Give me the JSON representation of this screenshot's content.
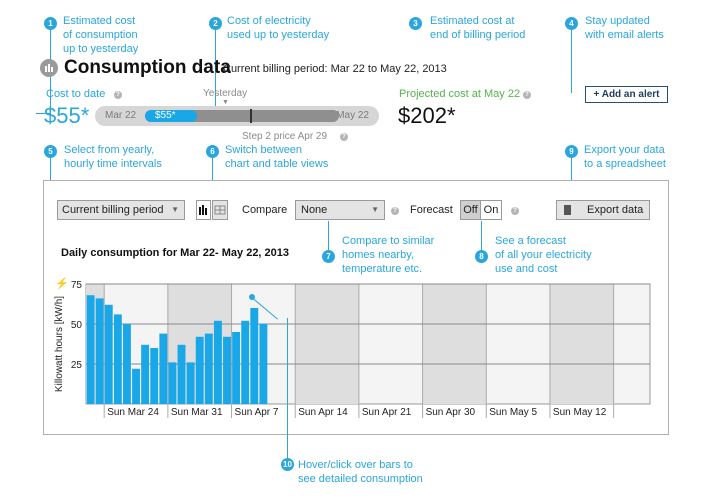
{
  "annotations": {
    "n1": {
      "num": "1",
      "text": "Estimated cost\nof consumption\nup to yesterday"
    },
    "n2": {
      "num": "2",
      "text": "Cost of electricity\nused up to yesterday"
    },
    "n3": {
      "num": "3",
      "text": "Estimated cost at\nend of billing period"
    },
    "n4": {
      "num": "4",
      "text": "Stay updated\nwith email alerts"
    },
    "n5": {
      "num": "5",
      "text": "Select from yearly,\nhourly time intervals"
    },
    "n6": {
      "num": "6",
      "text": "Switch between\nchart and table views"
    },
    "n7": {
      "num": "7",
      "text": "Compare to similar\nhomes nearby,\ntemperature etc."
    },
    "n8": {
      "num": "8",
      "text": "See a forecast\nof all your electricity\nuse and cost"
    },
    "n9": {
      "num": "9",
      "text": "Export your data\nto a spreadsheet"
    },
    "n10": {
      "num": "10",
      "text": "Hover/click over bars to\nsee detailed consumption"
    }
  },
  "header": {
    "title": "Consumption data",
    "billing_period": "Current billing period: Mar 22 to May 22, 2013"
  },
  "cost": {
    "to_date_label": "Cost to date",
    "to_date_value": "$55*",
    "yesterday_label": "Yesterday",
    "slider_start": "Mar 22",
    "slider_end": "May 22",
    "slider_fill_label": "$55*",
    "step_label": "Step 2 price Apr 29",
    "projected_label": "Projected cost at May 22",
    "projected_value": "$202*",
    "progress_fraction": 0.27,
    "step_fraction": 0.54
  },
  "alert_button": "+ Add an alert",
  "toolbar": {
    "interval_select": "Current billing period",
    "compare_label": "Compare",
    "compare_select": "None",
    "forecast_label": "Forecast",
    "forecast_off": "Off",
    "forecast_on": "On",
    "export_label": "Export data"
  },
  "chart_data": {
    "type": "bar",
    "title": "Daily consumption for Mar 22- May 22, 2013",
    "ylabel": "Killowatt hours [kW/h]",
    "ylim": [
      0,
      75
    ],
    "yticks": [
      25,
      50,
      75
    ],
    "xtick_labels": [
      "Sun Mar 24",
      "Sun Mar 31",
      "Sun Apr 7",
      "Sun Apr 14",
      "Sun Apr 21",
      "Sun Apr 30",
      "Sun May 5",
      "Sun May 12"
    ],
    "values": [
      68,
      66,
      62,
      56,
      50,
      22,
      37,
      35,
      44,
      26,
      37,
      26,
      42,
      44,
      52,
      42,
      45,
      52,
      60,
      50
    ],
    "days_total": 62,
    "color": "#1aa7e8"
  },
  "colors": {
    "accent": "#2aa6dc",
    "bar": "#1aa7e8",
    "week_shade": "#dedede"
  }
}
